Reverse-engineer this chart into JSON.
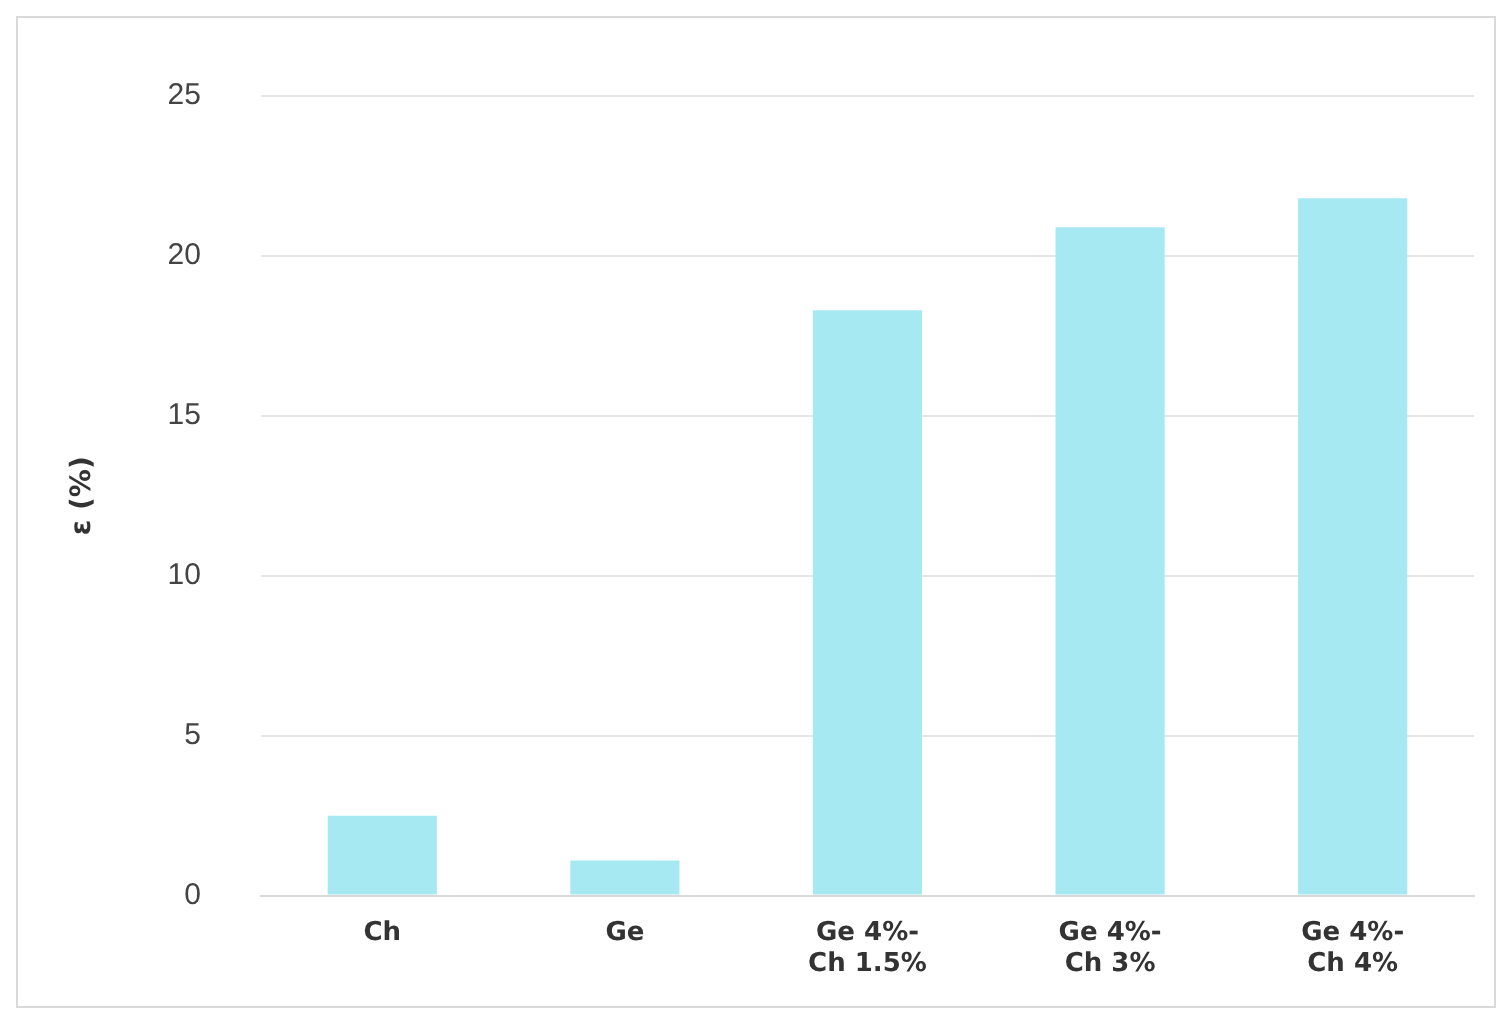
{
  "chart_data": {
    "type": "bar",
    "ylabel": "ε (%)",
    "categories": [
      "Ch",
      "Ge",
      "Ge 4%-Ch 1.5%",
      "Ge 4%-Ch 3%",
      "Ge 4%-Ch 4%"
    ],
    "values": [
      2.5,
      1.1,
      18.3,
      20.9,
      21.8
    ],
    "color": "#a6e9f3",
    "ylim": [
      0,
      25
    ],
    "yticks": [
      0,
      5,
      10,
      15,
      20,
      25
    ],
    "grid": "y",
    "legend": false
  }
}
